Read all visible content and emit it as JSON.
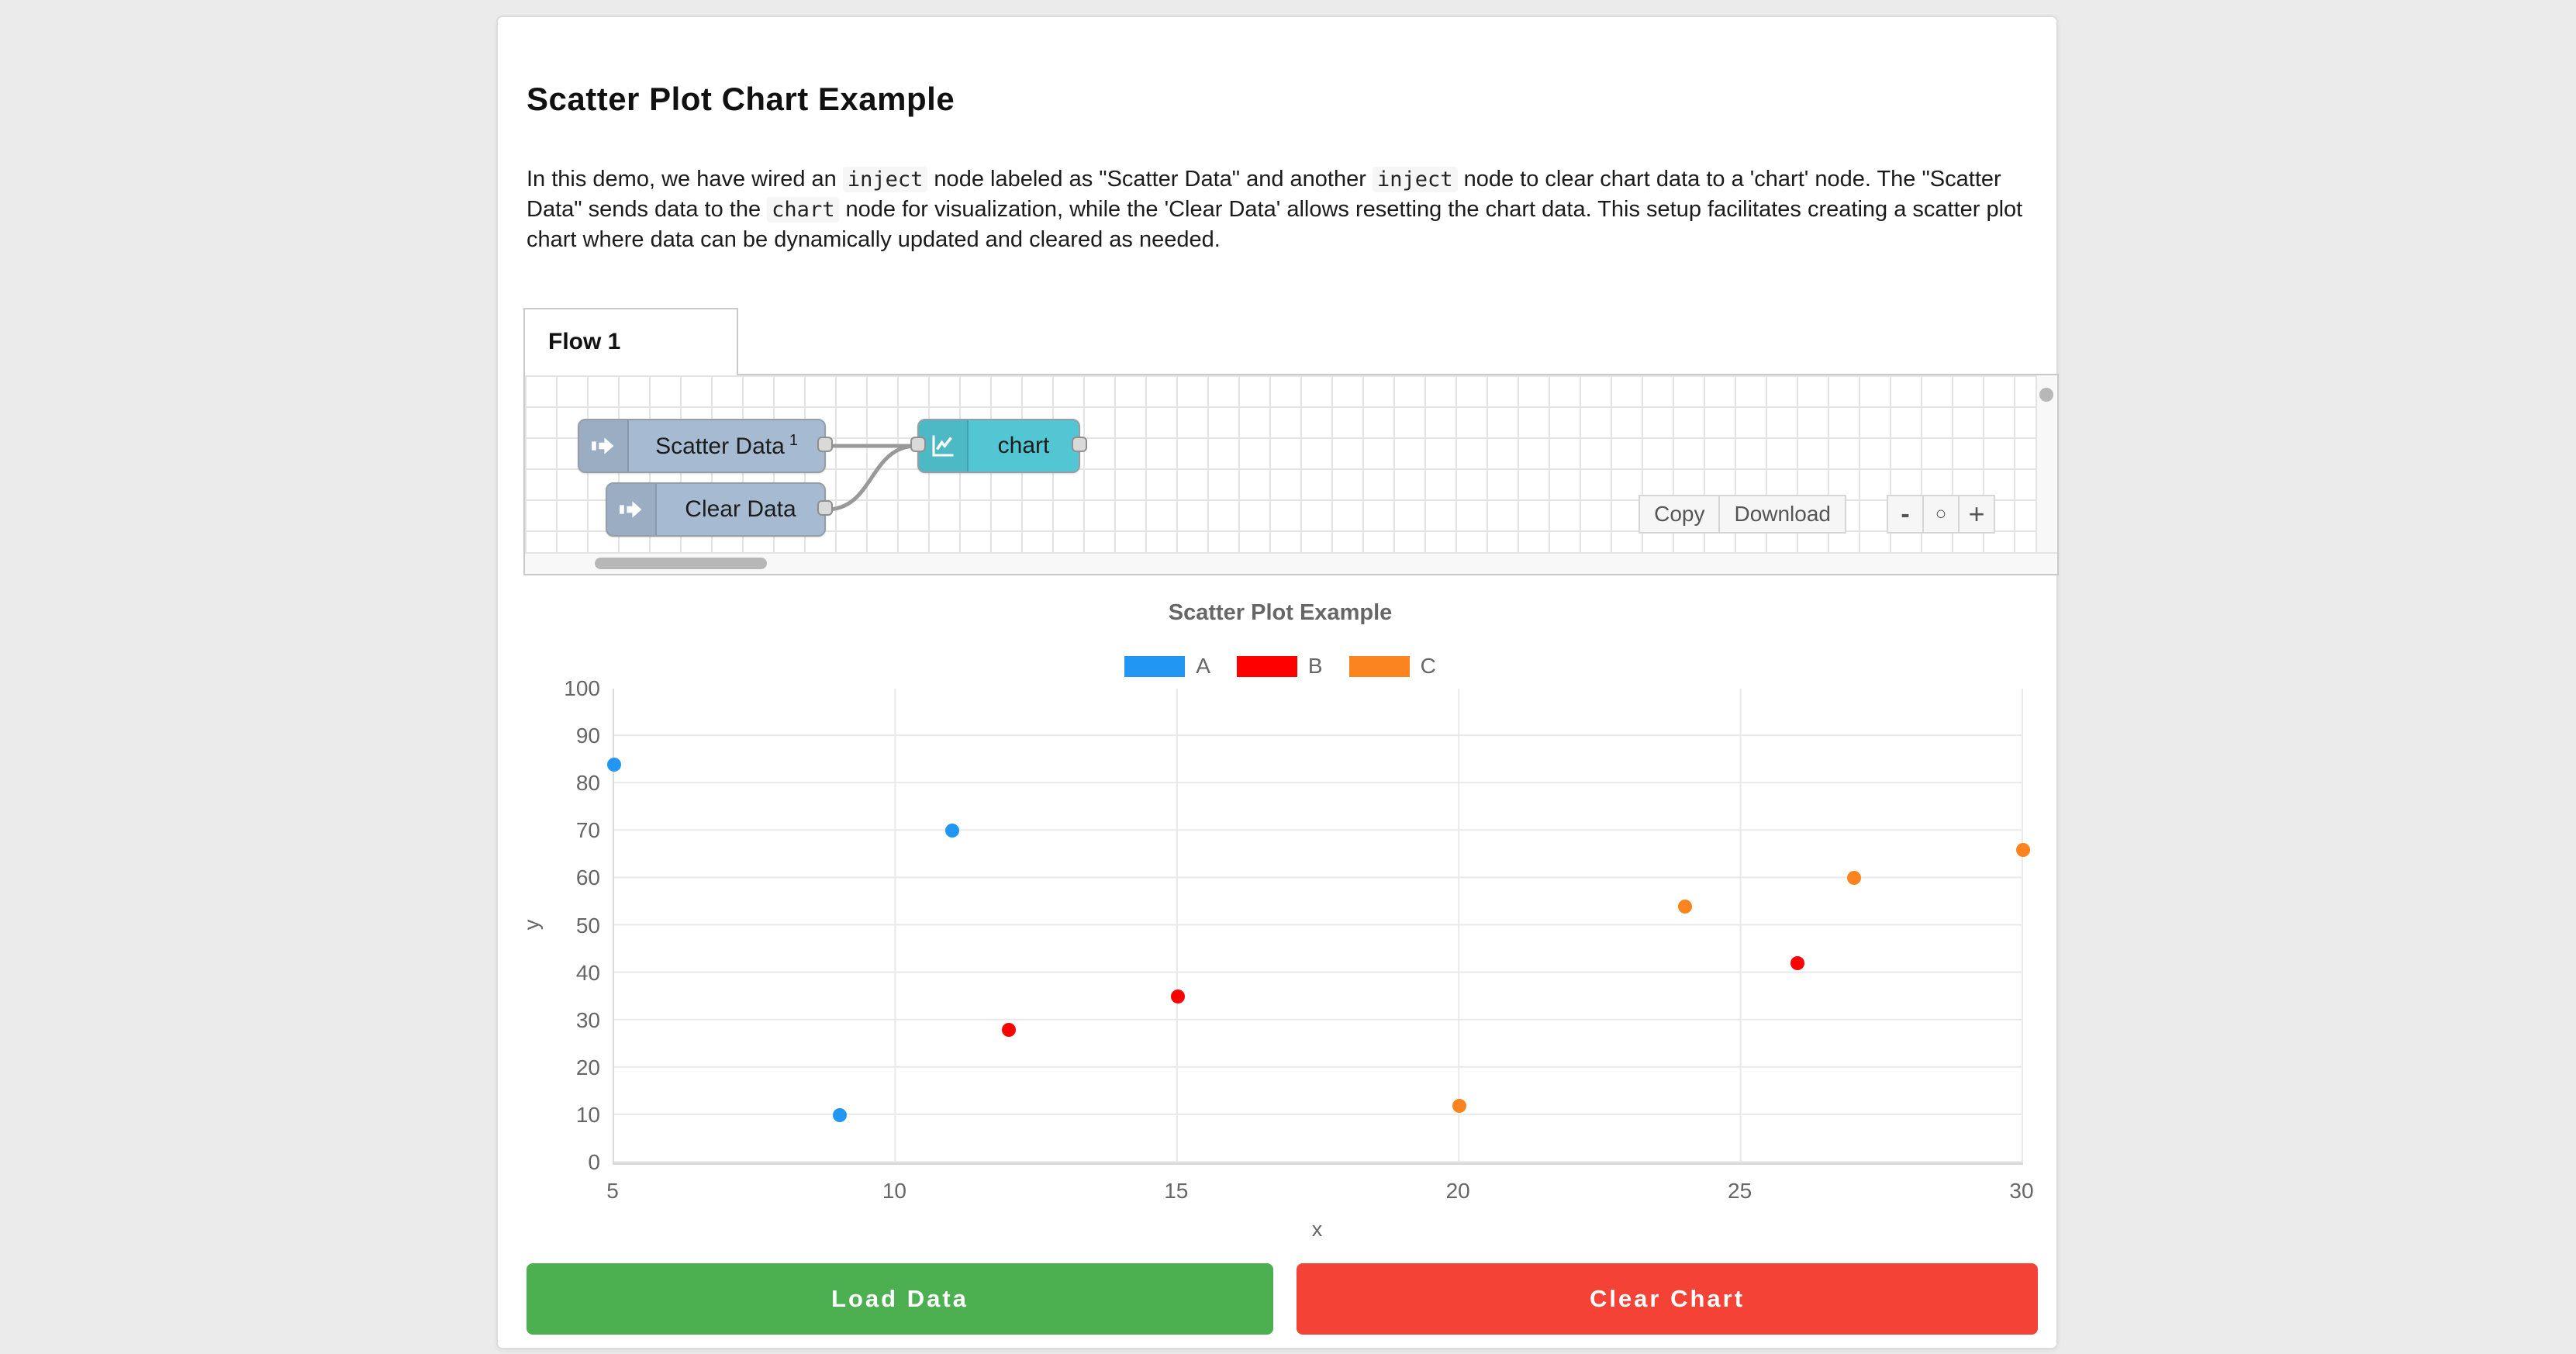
{
  "header": {
    "title": "Scatter Plot Chart Example"
  },
  "description": {
    "segments": [
      {
        "code": false,
        "t": "In this demo, we have wired an "
      },
      {
        "code": true,
        "t": "inject"
      },
      {
        "code": false,
        "t": " node labeled as \"Scatter Data\" and another "
      },
      {
        "code": true,
        "t": "inject"
      },
      {
        "code": false,
        "t": " node to clear chart data to a 'chart' node. The \"Scatter Data\" sends data to the "
      },
      {
        "code": true,
        "t": "chart"
      },
      {
        "code": false,
        "t": " node for visualization, while the 'Clear Data' allows resetting the chart data. This setup facilitates creating a scatter plot chart where data can be dynamically updated and cleared as needed."
      }
    ]
  },
  "flow": {
    "tab_label": "Flow 1",
    "nodes": {
      "scatter": {
        "label": "Scatter Data",
        "badge": "1",
        "color": "#a6bbd1"
      },
      "clear": {
        "label": "Clear Data",
        "color": "#a6bbd1"
      },
      "chart": {
        "label": "chart",
        "color": "#52c7d3"
      }
    },
    "wire_color": "#999999",
    "toolbar": {
      "copy_label": "Copy",
      "download_label": "Download",
      "zoom_out_label": "-",
      "zoom_reset_label": "○",
      "zoom_in_label": "+"
    }
  },
  "chart_data": {
    "type": "scatter",
    "title": "Scatter Plot Example",
    "xlabel": "x",
    "ylabel": "y",
    "xlim": [
      5,
      30
    ],
    "ylim": [
      0,
      100
    ],
    "x_ticks": [
      5,
      10,
      15,
      20,
      25,
      30
    ],
    "y_ticks": [
      0,
      10,
      20,
      30,
      40,
      50,
      60,
      70,
      80,
      90,
      100
    ],
    "grid": true,
    "legend_position": "top",
    "series": [
      {
        "name": "A",
        "color": "#2196f3",
        "points": [
          [
            5,
            84
          ],
          [
            9,
            10
          ],
          [
            11,
            70
          ]
        ]
      },
      {
        "name": "B",
        "color": "#ff0000",
        "points": [
          [
            12,
            28
          ],
          [
            15,
            35
          ],
          [
            26,
            42
          ]
        ]
      },
      {
        "name": "C",
        "color": "#fb8320",
        "points": [
          [
            20,
            12
          ],
          [
            24,
            54
          ],
          [
            27,
            60
          ],
          [
            30,
            66
          ]
        ]
      }
    ]
  },
  "actions": {
    "load_label": "Load Data",
    "load_color": "#4caf50",
    "clear_label": "Clear Chart",
    "clear_color": "#f44336"
  }
}
